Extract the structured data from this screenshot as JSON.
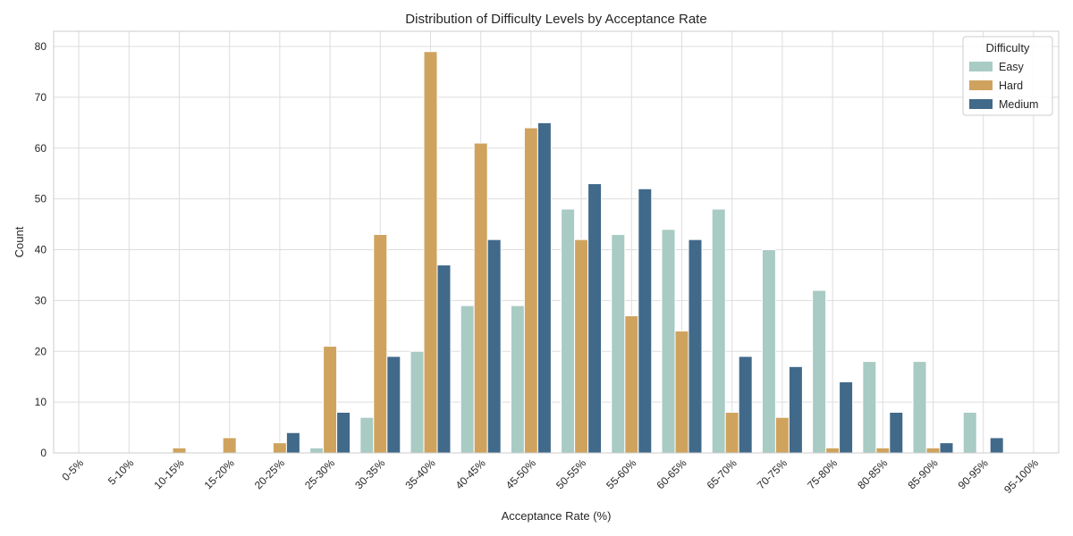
{
  "chart_data": {
    "type": "bar",
    "title": "Distribution of Difficulty Levels by Acceptance Rate",
    "xlabel": "Acceptance Rate (%)",
    "ylabel": "Count",
    "ylim": [
      0,
      83
    ],
    "yticks": [
      0,
      10,
      20,
      30,
      40,
      50,
      60,
      70,
      80
    ],
    "grid": true,
    "legend": {
      "title": "Difficulty",
      "placement": "top-right"
    },
    "categories": [
      "0-5%",
      "5-10%",
      "10-15%",
      "15-20%",
      "20-25%",
      "25-30%",
      "30-35%",
      "35-40%",
      "40-45%",
      "45-50%",
      "50-55%",
      "55-60%",
      "60-65%",
      "65-70%",
      "70-75%",
      "75-80%",
      "80-85%",
      "85-90%",
      "90-95%",
      "95-100%"
    ],
    "series": [
      {
        "name": "Easy",
        "color": "#a8cbc4",
        "values": [
          0,
          0,
          0,
          0,
          0,
          1,
          7,
          20,
          29,
          29,
          48,
          43,
          44,
          48,
          40,
          32,
          18,
          18,
          8,
          0
        ]
      },
      {
        "name": "Hard",
        "color": "#cfa35e",
        "values": [
          0,
          0,
          1,
          3,
          2,
          21,
          43,
          79,
          61,
          64,
          42,
          27,
          24,
          8,
          7,
          1,
          1,
          1,
          0,
          0
        ]
      },
      {
        "name": "Medium",
        "color": "#41698a",
        "values": [
          0,
          0,
          0,
          0,
          4,
          8,
          19,
          37,
          42,
          65,
          53,
          52,
          42,
          19,
          17,
          14,
          8,
          2,
          3,
          0
        ]
      }
    ]
  }
}
